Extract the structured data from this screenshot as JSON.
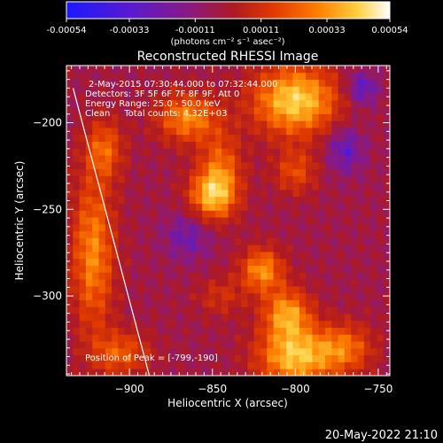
{
  "colorbar": {
    "ticks": [
      "-0.00054",
      "-0.00033",
      "-0.00011",
      "0.00011",
      "0.00033",
      "0.00054"
    ],
    "units": "(photons cm⁻² s⁻¹ asec⁻²)",
    "range": [
      -0.00054,
      0.00054
    ],
    "colors": [
      "#1a1aff",
      "#5a1ad0",
      "#8a1a80",
      "#b01a20",
      "#e03a00",
      "#ff8000",
      "#ffd040",
      "#ffffff"
    ]
  },
  "chart_data": {
    "type": "heatmap",
    "title": "Reconstructed RHESSI Image",
    "xlabel": "Heliocentric X (arcsec)",
    "ylabel": "Heliocentric Y (arcsec)",
    "xlim": [
      -938,
      -743
    ],
    "ylim": [
      -346,
      -167
    ],
    "x_ticks": [
      -900,
      -850,
      -800,
      -750
    ],
    "y_ticks": [
      -200,
      -250,
      -300
    ],
    "x_tick_labels": [
      "−900",
      "−850",
      "−800",
      "−750"
    ],
    "y_tick_labels": [
      "−200",
      "−250",
      "−300"
    ],
    "annotations": [
      "2-May-2015 07:30:44.000 to 07:32:44.000",
      "Detectors: 3F 5F 6F 7F 8F 9F, Att 0",
      "Energy Range: 25.0 - 50.0 keV",
      "Clean     Total counts: 4.32E+03"
    ],
    "peak_label": "Position of Peak = [-799,-190]",
    "peak": [
      -799,
      -190
    ],
    "limb": [
      [
        -934,
        -180
      ],
      [
        -888,
        -346
      ]
    ],
    "sources": [
      {
        "x": -800,
        "y": -187,
        "sx": 18,
        "sy": 14,
        "amp": 0.00054
      },
      {
        "x": -865,
        "y": -197,
        "sx": 13,
        "sy": 10,
        "amp": 0.00038
      },
      {
        "x": -850,
        "y": -242,
        "sx": 10,
        "sy": 10,
        "amp": 0.00045
      },
      {
        "x": -845,
        "y": -225,
        "sx": 9,
        "sy": 14,
        "amp": 0.00028
      },
      {
        "x": -820,
        "y": -285,
        "sx": 9,
        "sy": 9,
        "amp": 0.0004
      },
      {
        "x": -805,
        "y": -310,
        "sx": 10,
        "sy": 10,
        "amp": 0.00042
      },
      {
        "x": -800,
        "y": -335,
        "sx": 16,
        "sy": 12,
        "amp": 0.0005
      },
      {
        "x": -770,
        "y": -330,
        "sx": 12,
        "sy": 10,
        "amp": 0.0003
      },
      {
        "x": -922,
        "y": -275,
        "sx": 9,
        "sy": 32,
        "amp": 0.00038
      },
      {
        "x": -915,
        "y": -215,
        "sx": 8,
        "sy": 12,
        "amp": 0.00028
      },
      {
        "x": -800,
        "y": -228,
        "sx": 9,
        "sy": 9,
        "amp": 0.00024
      },
      {
        "x": -905,
        "y": -333,
        "sx": 12,
        "sy": 9,
        "amp": 0.00028
      },
      {
        "x": -845,
        "y": -300,
        "sx": 10,
        "sy": 8,
        "amp": 0.00016
      },
      {
        "x": -770,
        "y": -215,
        "sx": 8,
        "sy": 10,
        "amp": -0.00022
      },
      {
        "x": -865,
        "y": -265,
        "sx": 10,
        "sy": 10,
        "amp": -0.00018
      },
      {
        "x": -760,
        "y": -180,
        "sx": 7,
        "sy": 7,
        "amp": -0.00025
      }
    ]
  },
  "timestamp": "20-May-2022 21:10"
}
